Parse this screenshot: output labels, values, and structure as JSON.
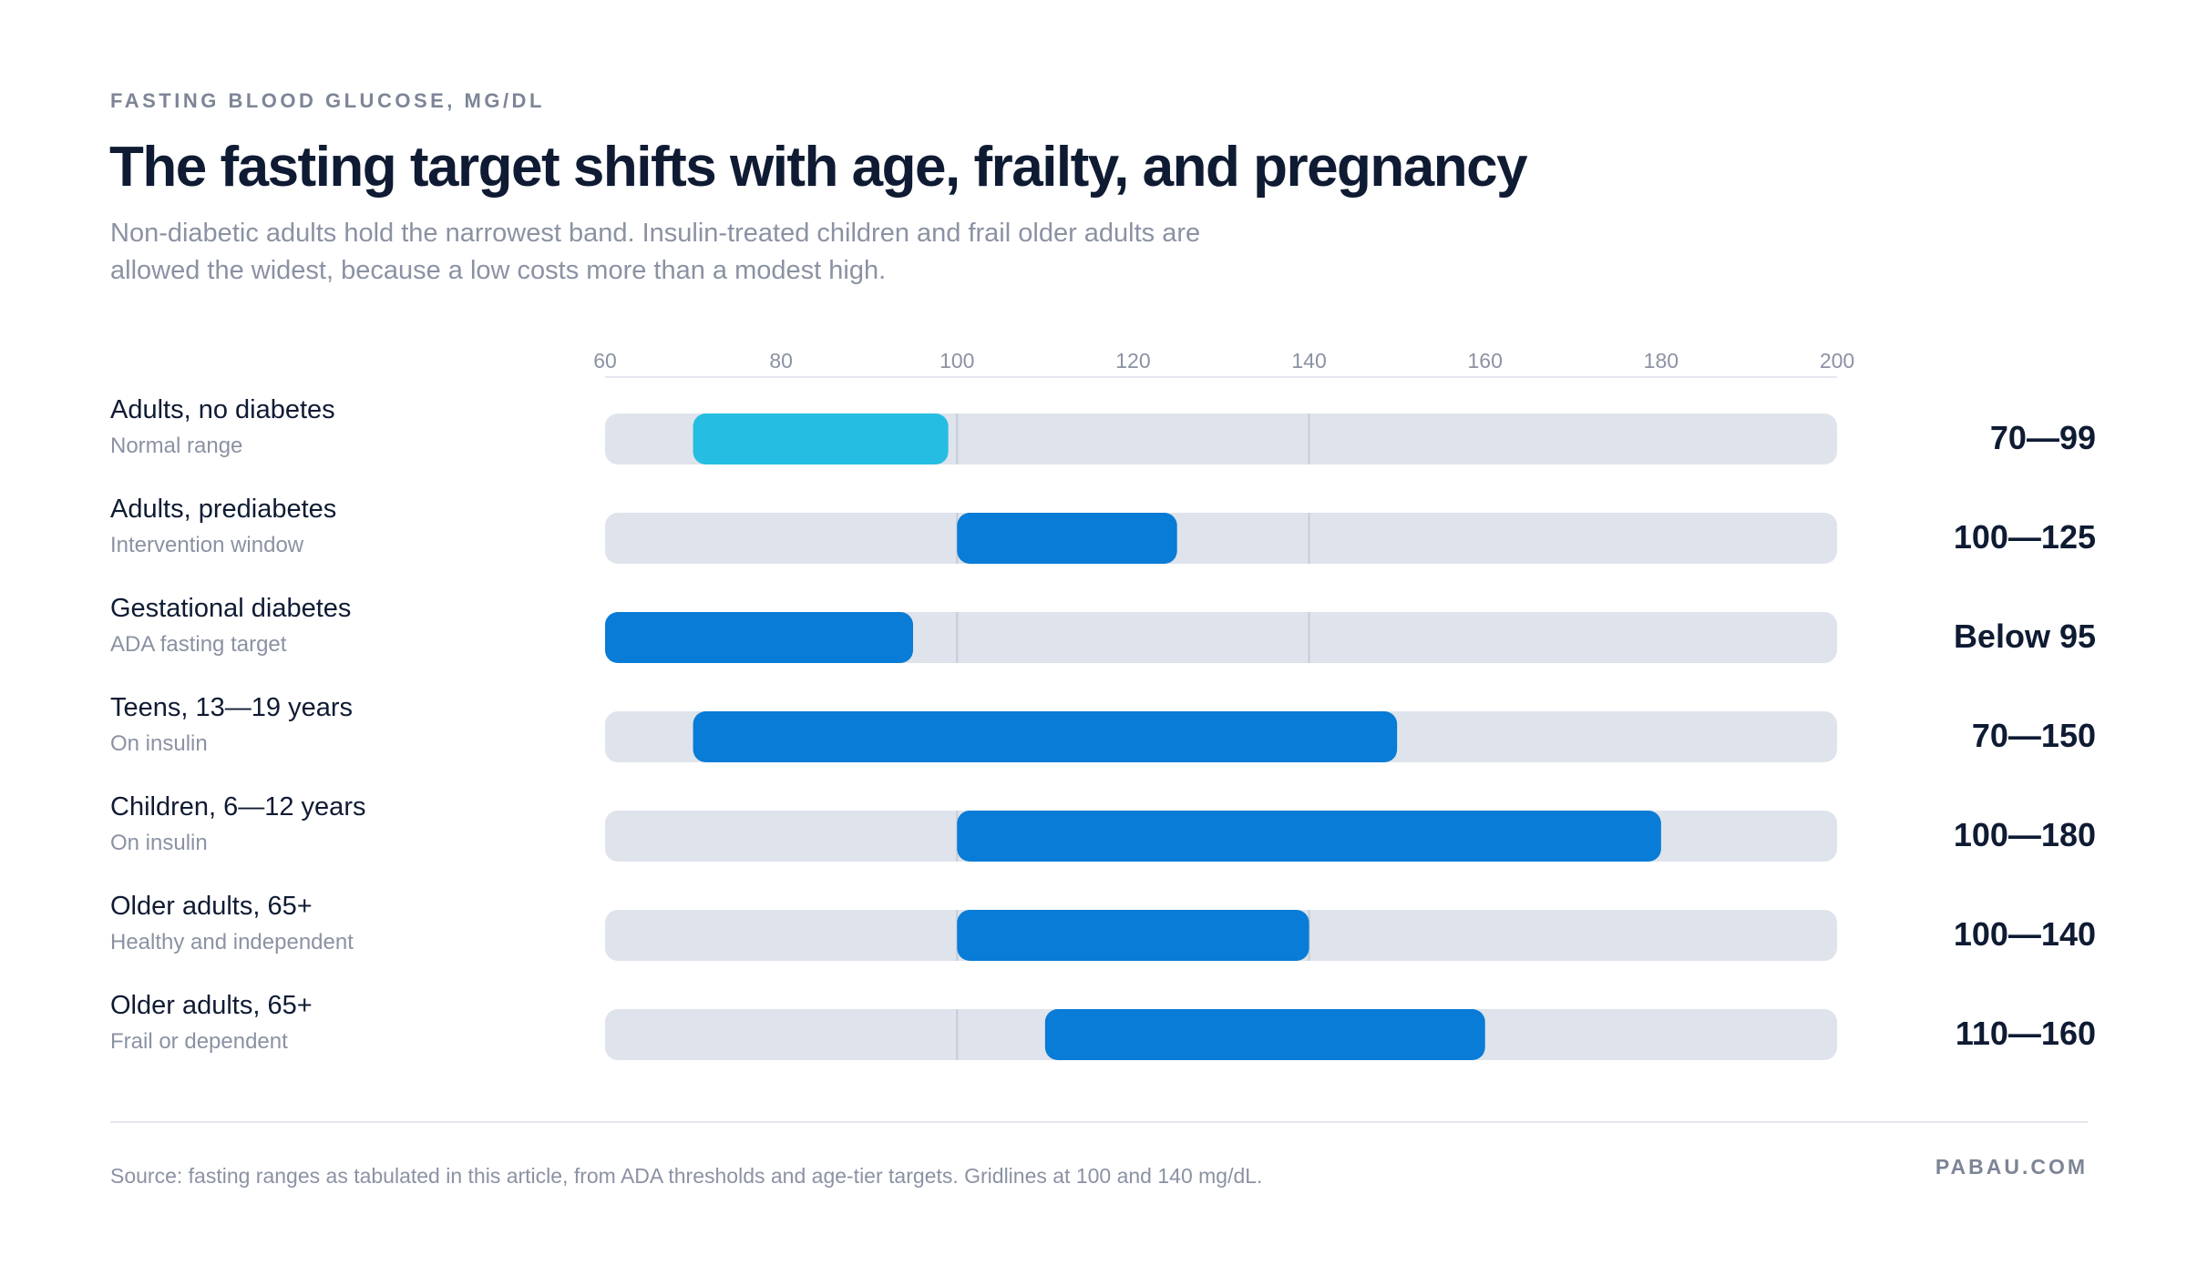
{
  "header": {
    "eyebrow": "FASTING BLOOD GLUCOSE, MG/DL",
    "title": "The fasting target shifts with age, frailty, and pregnancy",
    "subtitle": "Non-diabetic adults hold the narrowest band. Insulin-treated children and frail older adults are allowed the widest, because a low costs more than a modest high."
  },
  "footer": {
    "source": "Source: fasting ranges as tabulated in this article, from ADA thresholds and age-tier targets. Gridlines at 100 and 140 mg/dL.",
    "brand": "PABAU.COM"
  },
  "chart_data": {
    "type": "bar",
    "orientation": "horizontal-range",
    "xlim": [
      60,
      200
    ],
    "xticks": [
      60,
      80,
      100,
      120,
      140,
      160,
      180,
      200
    ],
    "gridlines": [
      100,
      140
    ],
    "colors": {
      "track": "#dfe3ec",
      "highlight": "#26bde2",
      "primary": "#087cd6",
      "gridline": "#c7ccd8"
    },
    "rows": [
      {
        "label": "Adults, no diabetes",
        "sublabel": "Normal range",
        "low": 70,
        "high": 99,
        "value_label": "70—99",
        "highlight": true
      },
      {
        "label": "Adults, prediabetes",
        "sublabel": "Intervention window",
        "low": 100,
        "high": 125,
        "value_label": "100—125",
        "highlight": false
      },
      {
        "label": "Gestational diabetes",
        "sublabel": "ADA fasting target",
        "low": 60,
        "high": 95,
        "value_label": "Below 95",
        "highlight": false
      },
      {
        "label": "Teens, 13—19 years",
        "sublabel": "On insulin",
        "low": 70,
        "high": 150,
        "value_label": "70—150",
        "highlight": false
      },
      {
        "label": "Children, 6—12 years",
        "sublabel": "On insulin",
        "low": 100,
        "high": 180,
        "value_label": "100—180",
        "highlight": false
      },
      {
        "label": "Older adults, 65+",
        "sublabel": "Healthy and independent",
        "low": 100,
        "high": 140,
        "value_label": "100—140",
        "highlight": false
      },
      {
        "label": "Older adults, 65+",
        "sublabel": "Frail or dependent",
        "low": 110,
        "high": 160,
        "value_label": "110—160",
        "highlight": false
      }
    ]
  }
}
